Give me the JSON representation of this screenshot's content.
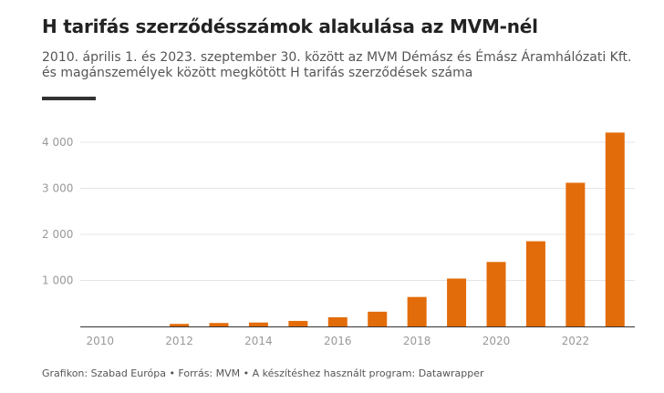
{
  "header": {
    "title": "H tarifás szerződésszámok alakulása az MVM-nél",
    "subtitle": "2010. április 1. és 2023. szeptember 30. között az MVM Démász és Émász Áramhálózati Kft. és magánszemélyek között megkötött H tarifás szerződések száma"
  },
  "footer": {
    "text": "Grafikon: Szabad Európa • Forrás: MVM • A készítéshez használt program: Datawrapper"
  },
  "colors": {
    "bar": "#e36c0a",
    "grid": "#e4e4e4",
    "axis": "#333333",
    "tick_text": "#999999"
  },
  "chart_data": {
    "type": "bar",
    "title": "H tarifás szerződésszámok alakulása az MVM-nél",
    "xlabel": "",
    "ylabel": "",
    "categories": [
      "2010",
      "2011",
      "2012",
      "2013",
      "2014",
      "2015",
      "2016",
      "2017",
      "2018",
      "2019",
      "2020",
      "2021",
      "2022",
      "2023"
    ],
    "values": [
      0,
      2,
      55,
      75,
      85,
      120,
      200,
      320,
      640,
      1040,
      1400,
      1850,
      3120,
      4210
    ],
    "ylim": [
      0,
      4400
    ],
    "yticks": [
      1000,
      2000,
      3000,
      4000
    ],
    "ytick_labels": [
      "1 000",
      "2 000",
      "3 000",
      "4 000"
    ],
    "xtick_labels": [
      "2010",
      "2012",
      "2014",
      "2016",
      "2018",
      "2020",
      "2022"
    ],
    "grid": true,
    "legend": "none"
  }
}
